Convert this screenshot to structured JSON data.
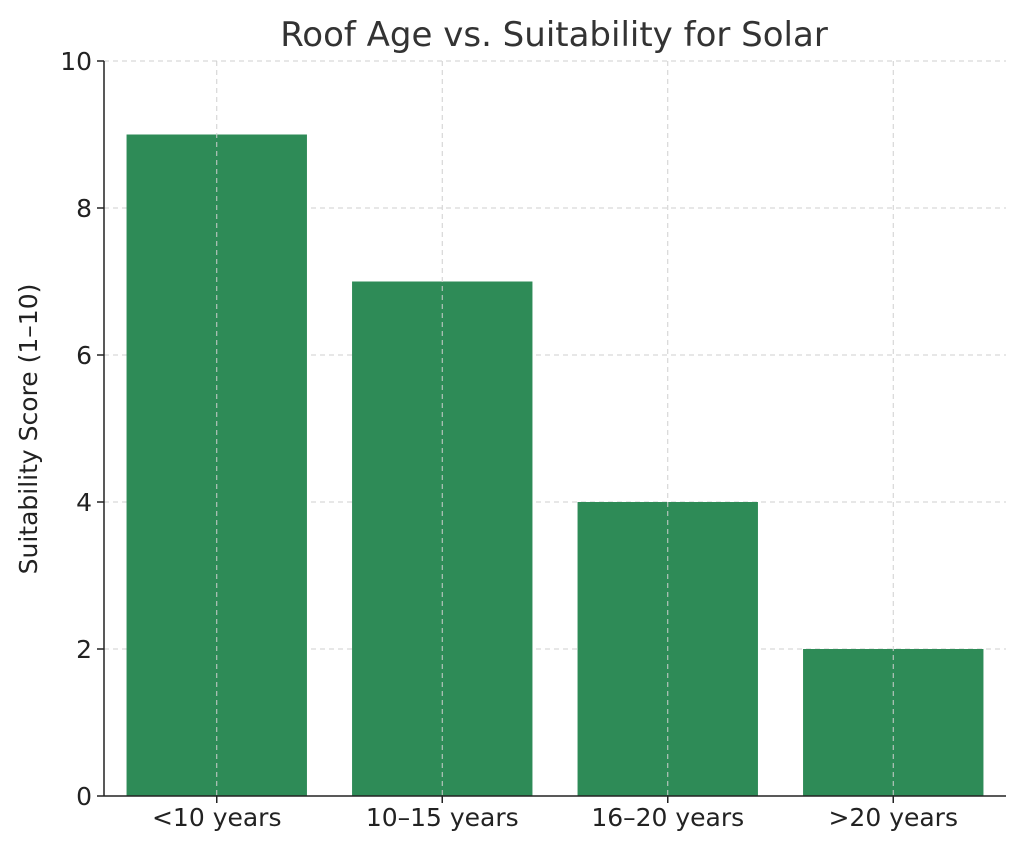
{
  "chart_data": {
    "type": "bar",
    "title": "Roof Age vs. Suitability for Solar",
    "xlabel": "",
    "ylabel": "Suitability Score (1–10)",
    "categories": [
      "<10 years",
      "10–15 years",
      "16–20 years",
      ">20 years"
    ],
    "values": [
      9,
      7,
      4,
      2
    ],
    "ylim": [
      0,
      10
    ],
    "yticks": [
      0,
      2,
      4,
      6,
      8,
      10
    ],
    "grid": true,
    "legend": "none",
    "bar_color": "#2e8b57"
  }
}
